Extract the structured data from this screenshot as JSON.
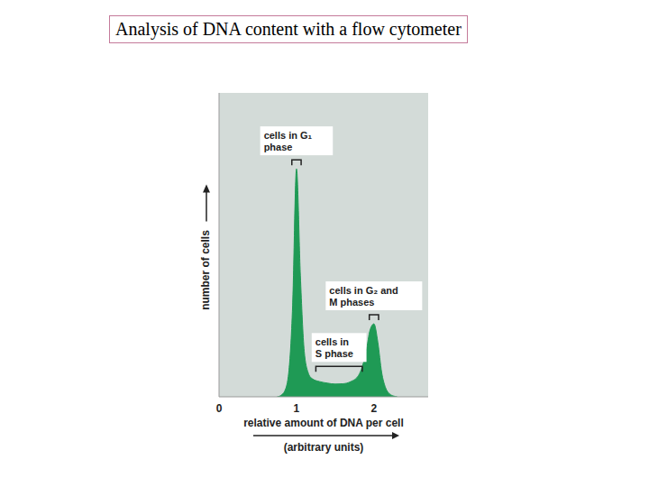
{
  "chart_data": {
    "type": "area",
    "title": "Analysis of DNA content with a flow cytometer",
    "x_label": "relative amount of DNA per cell",
    "x_sublabel": "(arbitrary units)",
    "y_label": "number of cells",
    "x": [
      0.75,
      0.8,
      0.85,
      0.9,
      0.95,
      1.0,
      1.05,
      1.1,
      1.15,
      1.2,
      1.3,
      1.4,
      1.5,
      1.6,
      1.7,
      1.8,
      1.85,
      1.9,
      1.95,
      2.0,
      2.05,
      2.1,
      2.15,
      2.2,
      2.25,
      2.3
    ],
    "values": [
      0,
      0.5,
      2,
      8,
      30,
      75,
      40,
      15,
      8,
      6,
      5,
      4.5,
      4.2,
      4.3,
      5,
      7,
      10,
      15,
      22,
      24,
      18,
      8,
      3,
      1,
      0.3,
      0
    ],
    "color": "#1f9a55",
    "xlim": [
      0,
      2.7
    ],
    "xticks": [
      0,
      1,
      2
    ],
    "ylim": [
      0,
      100
    ],
    "tick_labels": "x",
    "grid": false,
    "annotations": [
      {
        "text": [
          "cells in G₁",
          "phase"
        ],
        "x_range": [
          0.94,
          1.06
        ],
        "y": 78
      },
      {
        "text": [
          "cells in G₂ and",
          "M phases"
        ],
        "x_range": [
          1.94,
          2.06
        ],
        "y": 27
      },
      {
        "text": [
          "cells in",
          "S phase"
        ],
        "x_range": [
          1.25,
          1.85
        ],
        "y": 10
      }
    ]
  }
}
